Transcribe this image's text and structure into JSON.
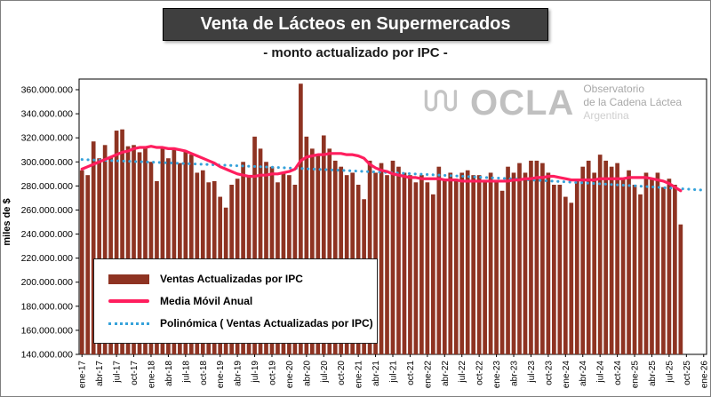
{
  "header": {
    "title": "Venta de Lácteos en Supermercados",
    "subtitle": "- monto actualizado por IPC -"
  },
  "watermark": {
    "brand": "OCLA",
    "line1": "Observatorio",
    "line2": "de la Cadena Láctea",
    "line3": "Argentina"
  },
  "legend": {
    "items": [
      {
        "label": "Ventas Actualizadas por IPC",
        "type": "bar",
        "color": "#8E3322"
      },
      {
        "label": "Media Móvil Anual",
        "type": "line",
        "color": "#FF1E5E"
      },
      {
        "label": "Polinómica ( Ventas Actualizadas por IPC)",
        "type": "dotted-line",
        "color": "#36A2DA"
      }
    ]
  },
  "chart_data": {
    "type": "bar",
    "title": "Venta de Lácteos en Supermercados - monto actualizado por IPC -",
    "xlabel": "",
    "ylabel": "miles de $",
    "unit": "miles de $",
    "values_scale": 1000000,
    "ylim": [
      140,
      360
    ],
    "y_tick_step": 20,
    "grid": false,
    "legend_position": "bottom-left-inside",
    "y_tick_labels": [
      "140.000.000",
      "160.000.000",
      "180.000.000",
      "200.000.000",
      "220.000.000",
      "240.000.000",
      "260.000.000",
      "280.000.000",
      "300.000.000",
      "320.000.000",
      "340.000.000",
      "360.000.000"
    ],
    "x_total_slots": 109,
    "x_tick_every": 3,
    "x_tick_labels": [
      "ene-17",
      "abr-17",
      "jul-17",
      "oct-17",
      "ene-18",
      "abr-18",
      "jul-18",
      "oct-18",
      "ene-19",
      "abr-19",
      "jul-19",
      "oct-19",
      "ene-20",
      "abr-20",
      "jul-20",
      "oct-20",
      "ene-21",
      "abr-21",
      "jul-21",
      "oct-21",
      "ene-22",
      "abr-22",
      "jul-22",
      "oct-22",
      "ene-23",
      "abr-23",
      "jul-23",
      "oct-23",
      "ene-24",
      "abr-24",
      "jul-24",
      "oct-24",
      "ene-25",
      "abr-25",
      "jul-25",
      "oct-25",
      "ene-26"
    ],
    "months": [
      "ene-17",
      "feb-17",
      "mar-17",
      "abr-17",
      "may-17",
      "jun-17",
      "jul-17",
      "ago-17",
      "sep-17",
      "oct-17",
      "nov-17",
      "dic-17",
      "ene-18",
      "feb-18",
      "mar-18",
      "abr-18",
      "may-18",
      "jun-18",
      "jul-18",
      "ago-18",
      "sep-18",
      "oct-18",
      "nov-18",
      "dic-18",
      "ene-19",
      "feb-19",
      "mar-19",
      "abr-19",
      "may-19",
      "jun-19",
      "jul-19",
      "ago-19",
      "sep-19",
      "oct-19",
      "nov-19",
      "dic-19",
      "ene-20",
      "feb-20",
      "mar-20",
      "abr-20",
      "may-20",
      "jun-20",
      "jul-20",
      "ago-20",
      "sep-20",
      "oct-20",
      "nov-20",
      "dic-20",
      "ene-21",
      "feb-21",
      "mar-21",
      "abr-21",
      "may-21",
      "jun-21",
      "jul-21",
      "ago-21",
      "sep-21",
      "oct-21",
      "nov-21",
      "dic-21",
      "ene-22",
      "feb-22",
      "mar-22",
      "abr-22",
      "may-22",
      "jun-22",
      "jul-22",
      "ago-22",
      "sep-22",
      "oct-22",
      "nov-22",
      "dic-22",
      "ene-23",
      "feb-23",
      "mar-23",
      "abr-23",
      "may-23",
      "jun-23",
      "jul-23",
      "ago-23",
      "sep-23",
      "oct-23",
      "nov-23",
      "dic-23",
      "ene-24",
      "feb-24",
      "mar-24",
      "abr-24",
      "may-24",
      "jun-24",
      "jul-24",
      "ago-24",
      "sep-24",
      "oct-24",
      "nov-24",
      "dic-24",
      "ene-25",
      "feb-25",
      "mar-25",
      "abr-25",
      "may-25",
      "jun-25",
      "jul-25",
      "ago-25",
      "sep-25"
    ],
    "series": [
      {
        "name": "Ventas Actualizadas por IPC",
        "type": "bar",
        "color": "#8E3322",
        "values": [
          293,
          289,
          317,
          303,
          314,
          304,
          326,
          327,
          313,
          314,
          308,
          312,
          300,
          284,
          311,
          303,
          311,
          299,
          309,
          306,
          291,
          293,
          283,
          284,
          271,
          262,
          281,
          286,
          300,
          289,
          321,
          311,
          300,
          296,
          283,
          291,
          289,
          281,
          365,
          321,
          311,
          306,
          322,
          311,
          301,
          296,
          289,
          291,
          281,
          269,
          301,
          291,
          299,
          289,
          301,
          296,
          291,
          289,
          283,
          289,
          283,
          273,
          296,
          286,
          291,
          286,
          291,
          293,
          289,
          289,
          283,
          291,
          284,
          276,
          296,
          291,
          299,
          291,
          301,
          301,
          299,
          291,
          281,
          281,
          271,
          266,
          286,
          296,
          301,
          291,
          306,
          301,
          296,
          299,
          286,
          293,
          281,
          273,
          291,
          286,
          291,
          279,
          286,
          281,
          248
        ]
      },
      {
        "name": "Media Móvil Anual",
        "type": "line",
        "color": "#FF1E5E",
        "values": [
          294,
          296,
          298,
          300,
          302,
          304,
          306,
          308,
          309,
          311,
          312,
          312,
          313,
          312,
          312,
          311,
          311,
          310,
          309,
          307,
          305,
          303,
          301,
          299,
          296,
          294,
          292,
          290,
          289,
          288,
          288,
          289,
          289,
          290,
          290,
          291,
          292,
          294,
          301,
          304,
          305,
          306,
          306,
          307,
          307,
          307,
          306,
          306,
          305,
          303,
          298,
          295,
          293,
          292,
          290,
          289,
          288,
          287,
          287,
          286,
          286,
          286,
          286,
          285,
          285,
          285,
          284,
          284,
          284,
          284,
          284,
          284,
          284,
          284,
          284,
          285,
          285,
          286,
          286,
          287,
          287,
          288,
          288,
          287,
          286,
          285,
          285,
          285,
          285,
          285,
          286,
          286,
          286,
          286,
          286,
          287,
          287,
          287,
          287,
          286,
          285,
          284,
          282,
          279,
          276
        ]
      },
      {
        "name": "Polinómica ( Ventas Actualizadas por IPC)",
        "type": "dotted-line",
        "color": "#36A2DA",
        "x_step": 3,
        "values": [
          302,
          301.4,
          300.9,
          300.3,
          299.8,
          299.2,
          298.6,
          298,
          297.4,
          296.8,
          296.2,
          295.6,
          294.9,
          294.3,
          293.6,
          293,
          292.3,
          291.6,
          291,
          290.2,
          289.5,
          288.8,
          288.1,
          287.3,
          286.6,
          285.8,
          285,
          284.2,
          283.4,
          282.6,
          281.8,
          280.9,
          280.1,
          279.2,
          278.3,
          277.4,
          276.5
        ]
      }
    ]
  }
}
